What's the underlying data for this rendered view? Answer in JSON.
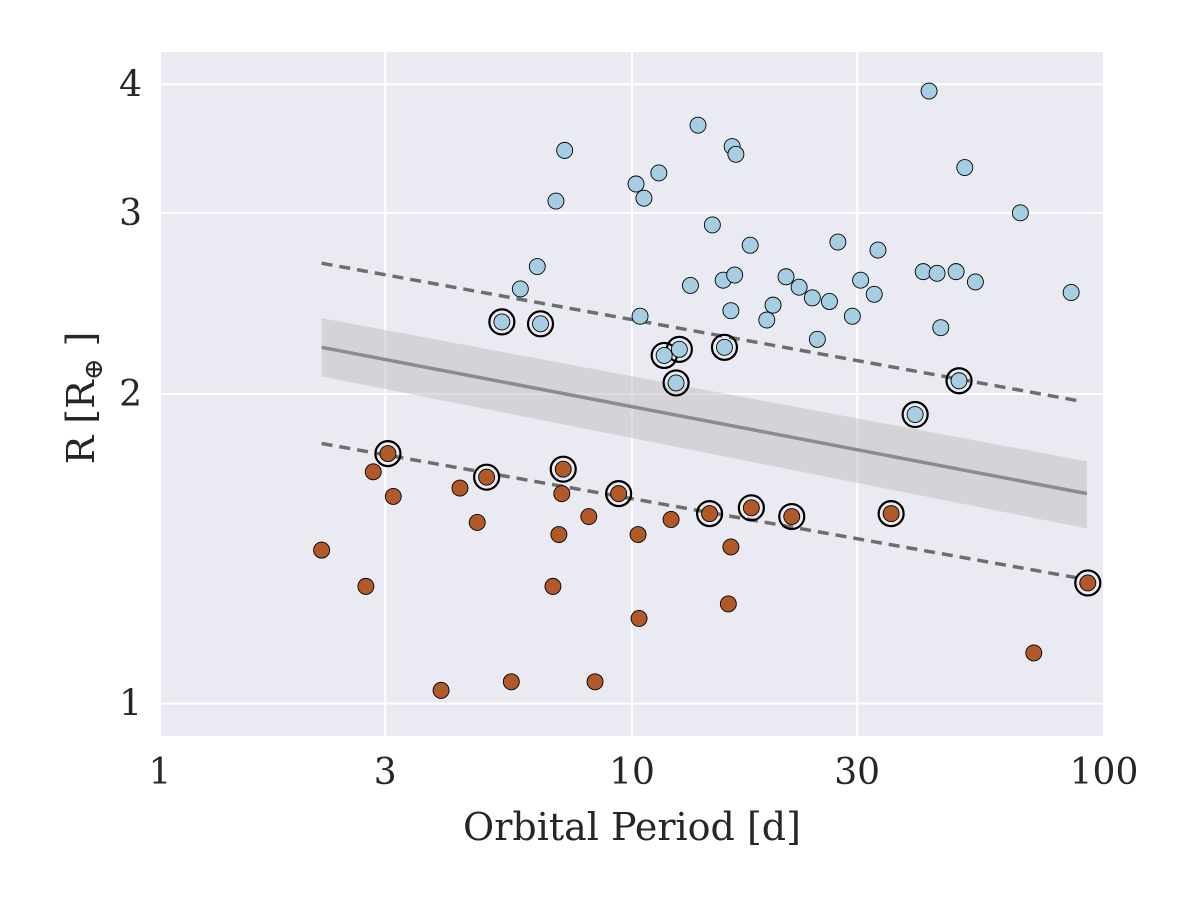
{
  "chart_data": {
    "type": "scatter",
    "xscale": "log",
    "yscale": "log",
    "xlabel": "Orbital Period [d]",
    "ylabel_prefix": "R [R",
    "ylabel_subscript": "⊕",
    "ylabel_suffix": " ]",
    "xlim": [
      1,
      100
    ],
    "ylim": [
      0.93,
      4.3
    ],
    "x_ticks": [
      1,
      3,
      10,
      30,
      100
    ],
    "x_tick_labels": [
      "1",
      "3",
      "10",
      "30",
      "100"
    ],
    "y_ticks": [
      1,
      2,
      3,
      4
    ],
    "y_tick_labels": [
      "1",
      "2",
      "3",
      "4"
    ],
    "grid": true,
    "colors": {
      "plot_background": "#EAEAF2",
      "grid": "#FFFFFF",
      "upper_series": "#A6CEE3",
      "lower_series": "#B15928",
      "marker_edge": "#000000",
      "trend_line": "#8C8C8C",
      "confidence_band": "#BEBEBE",
      "dashed_lines": "#6E6E6E"
    },
    "series": [
      {
        "name": "upper",
        "color": "#A6CEE3",
        "points": [
          [
            5.3,
            2.35
          ],
          [
            6.4,
            2.34
          ],
          [
            5.8,
            2.53
          ],
          [
            6.3,
            2.66
          ],
          [
            6.9,
            3.08
          ],
          [
            7.2,
            3.45
          ],
          [
            10.2,
            3.2
          ],
          [
            10.6,
            3.1
          ],
          [
            11.4,
            3.28
          ],
          [
            10.4,
            2.38
          ],
          [
            11.7,
            2.18
          ],
          [
            12.4,
            2.05
          ],
          [
            12.6,
            2.21
          ],
          [
            13.3,
            2.55
          ],
          [
            13.8,
            3.65
          ],
          [
            14.8,
            2.92
          ],
          [
            15.7,
            2.22
          ],
          [
            15.6,
            2.58
          ],
          [
            16.2,
            2.41
          ],
          [
            16.5,
            2.61
          ],
          [
            16.3,
            3.48
          ],
          [
            16.6,
            3.42
          ],
          [
            17.8,
            2.79
          ],
          [
            19.3,
            2.36
          ],
          [
            19.9,
            2.44
          ],
          [
            21.2,
            2.6
          ],
          [
            22.6,
            2.54
          ],
          [
            24.1,
            2.48
          ],
          [
            24.7,
            2.26
          ],
          [
            26.2,
            2.46
          ],
          [
            27.3,
            2.81
          ],
          [
            29.3,
            2.38
          ],
          [
            30.5,
            2.58
          ],
          [
            32.6,
            2.5
          ],
          [
            33.2,
            2.76
          ],
          [
            39.8,
            1.91
          ],
          [
            41.4,
            2.63
          ],
          [
            42.6,
            3.94
          ],
          [
            44.3,
            2.62
          ],
          [
            45.1,
            2.32
          ],
          [
            48.6,
            2.63
          ],
          [
            49.3,
            2.06
          ],
          [
            50.7,
            3.32
          ],
          [
            53.4,
            2.57
          ],
          [
            66.5,
            3.0
          ],
          [
            85.2,
            2.51
          ]
        ]
      },
      {
        "name": "lower",
        "color": "#B15928",
        "points": [
          [
            2.2,
            1.41
          ],
          [
            2.73,
            1.3
          ],
          [
            2.83,
            1.68
          ],
          [
            3.04,
            1.75
          ],
          [
            3.12,
            1.59
          ],
          [
            3.94,
            1.03
          ],
          [
            4.32,
            1.62
          ],
          [
            4.7,
            1.5
          ],
          [
            4.92,
            1.66
          ],
          [
            5.55,
            1.05
          ],
          [
            6.8,
            1.3
          ],
          [
            7.0,
            1.46
          ],
          [
            7.1,
            1.6
          ],
          [
            7.15,
            1.69
          ],
          [
            8.1,
            1.52
          ],
          [
            8.35,
            1.05
          ],
          [
            9.37,
            1.6
          ],
          [
            10.3,
            1.46
          ],
          [
            10.35,
            1.21
          ],
          [
            12.1,
            1.51
          ],
          [
            14.6,
            1.53
          ],
          [
            16.0,
            1.25
          ],
          [
            16.2,
            1.42
          ],
          [
            17.9,
            1.55
          ],
          [
            21.8,
            1.52
          ],
          [
            35.4,
            1.53
          ],
          [
            71.0,
            1.12
          ],
          [
            92.4,
            1.31
          ]
        ]
      }
    ],
    "highlighted_points": [
      [
        5.3,
        2.35
      ],
      [
        6.4,
        2.34
      ],
      [
        11.7,
        2.18
      ],
      [
        12.4,
        2.05
      ],
      [
        12.6,
        2.21
      ],
      [
        15.7,
        2.22
      ],
      [
        39.8,
        1.91
      ],
      [
        49.3,
        2.06
      ],
      [
        3.04,
        1.75
      ],
      [
        4.92,
        1.66
      ],
      [
        7.15,
        1.69
      ],
      [
        9.37,
        1.6
      ],
      [
        14.6,
        1.53
      ],
      [
        17.9,
        1.55
      ],
      [
        21.8,
        1.52
      ],
      [
        35.4,
        1.53
      ],
      [
        92.4,
        1.31
      ]
    ],
    "trend_line": {
      "x": [
        2.2,
        92.0
      ],
      "y": [
        2.22,
        1.6
      ]
    },
    "confidence_band": {
      "x": [
        2.2,
        92.0
      ],
      "upper": [
        2.37,
        1.72
      ],
      "lower": [
        2.08,
        1.48
      ]
    },
    "dashed_lines": [
      {
        "x": [
          2.2,
          88.0
        ],
        "y": [
          2.68,
          1.97
        ]
      },
      {
        "x": [
          2.2,
          92.0
        ],
        "y": [
          1.79,
          1.32
        ]
      }
    ]
  }
}
